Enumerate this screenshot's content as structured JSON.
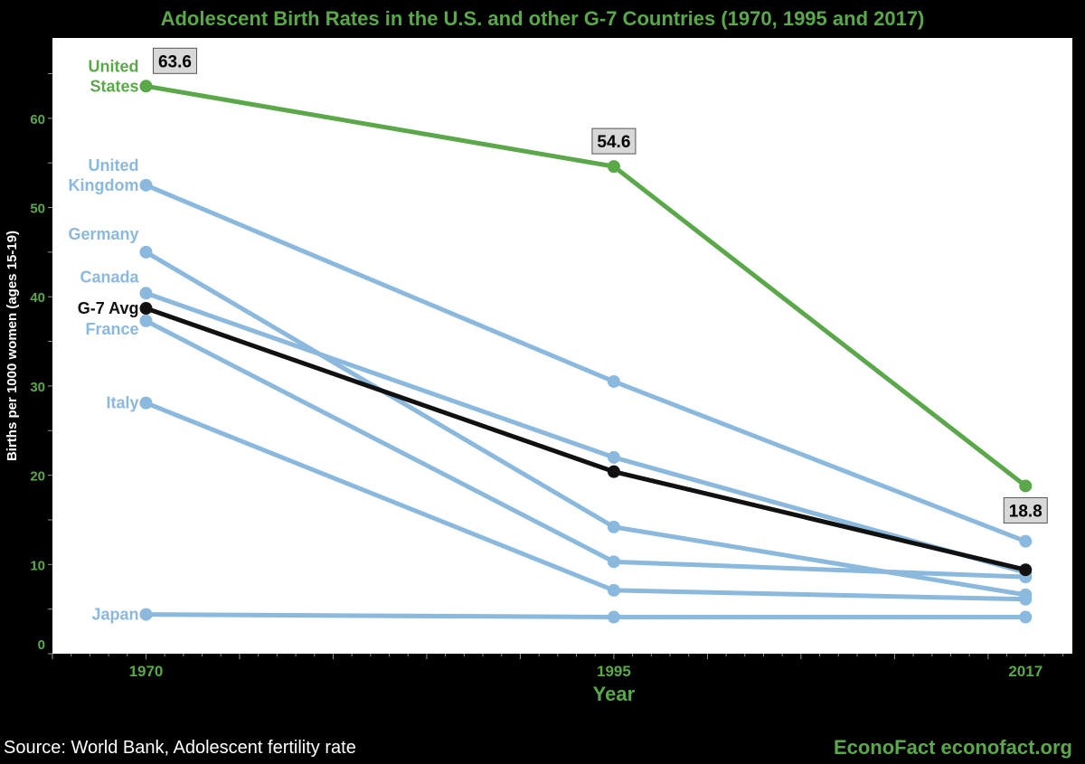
{
  "chart_data": {
    "type": "line",
    "title": "Adolescent Birth Rates in the U.S. and other G-7 Countries (1970, 1995 and 2017)",
    "xlabel": "Year",
    "ylabel": "Births per 1000 women (ages 15-19)",
    "x": [
      1970,
      1995,
      2017
    ],
    "x_tick_labels": [
      "1970",
      "1995",
      "2017"
    ],
    "xlim": [
      1965,
      2019.5
    ],
    "ylim": [
      0,
      69
    ],
    "y_ticks": [
      0,
      10,
      20,
      30,
      40,
      50,
      60
    ],
    "grid": false,
    "colors": {
      "us": "#5aa84a",
      "other": "#8bb8dd",
      "avg": "#111111",
      "axis_text": "#5aa84a"
    },
    "series": [
      {
        "name": "United States",
        "label_lines": [
          "United",
          "States"
        ],
        "values": [
          63.6,
          54.6,
          18.8
        ],
        "color": "#5aa84a",
        "data_labels": [
          "63.6",
          "54.6",
          "18.8"
        ]
      },
      {
        "name": "United Kingdom",
        "label_lines": [
          "United",
          "Kingdom"
        ],
        "values": [
          52.5,
          30.5,
          12.6
        ],
        "color": "#8bb8dd"
      },
      {
        "name": "Germany",
        "label_lines": [
          "Germany"
        ],
        "values": [
          45.0,
          14.2,
          6.6
        ],
        "color": "#8bb8dd"
      },
      {
        "name": "Canada",
        "label_lines": [
          "Canada"
        ],
        "values": [
          40.4,
          22.0,
          9.1
        ],
        "color": "#8bb8dd"
      },
      {
        "name": "France",
        "label_lines": [
          "France"
        ],
        "values": [
          37.3,
          10.3,
          8.6
        ],
        "color": "#8bb8dd"
      },
      {
        "name": "Italy",
        "label_lines": [
          "Italy"
        ],
        "values": [
          28.1,
          7.1,
          6.1
        ],
        "color": "#8bb8dd"
      },
      {
        "name": "Japan",
        "label_lines": [
          "Japan"
        ],
        "values": [
          4.4,
          4.1,
          4.1
        ],
        "color": "#8bb8dd"
      },
      {
        "name": "G-7 Avg",
        "label_lines": [
          "G-7 Avg"
        ],
        "values": [
          38.7,
          20.4,
          9.4
        ],
        "color": "#111111"
      }
    ]
  },
  "footer": {
    "source": "Source: World Bank, Adolescent fertility rate",
    "brand": "EconoFact  econofact.org"
  }
}
